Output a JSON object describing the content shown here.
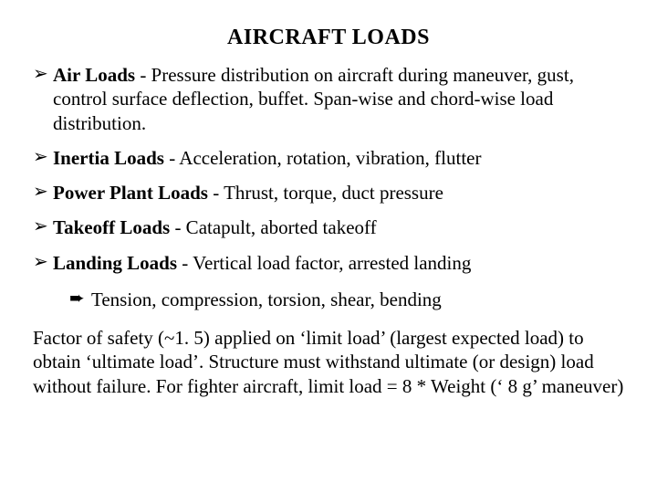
{
  "title": "AIRCRAFT LOADS",
  "bullet_marker": "➢",
  "arrow_marker": "➨",
  "items": [
    {
      "heading": "Air Loads",
      "rest": " - Pressure distribution on aircraft during maneuver, gust, control surface deflection, buffet.  Span-wise and chord-wise load distribution."
    },
    {
      "heading": "Inertia Loads",
      "rest": " - Acceleration, rotation, vibration, flutter"
    },
    {
      "heading": "Power Plant Loads",
      "rest": " - Thrust, torque, duct pressure"
    },
    {
      "heading": "Takeoff Loads",
      "rest": " - Catapult, aborted takeoff"
    },
    {
      "heading": "Landing Loads",
      "rest": " - Vertical load factor, arrested landing"
    }
  ],
  "sub": "Tension, compression, torsion, shear, bending",
  "footer": "Factor of safety (~1. 5) applied on ‘limit load’  (largest expected load) to obtain ‘ultimate load’.  Structure must withstand ultimate (or design) load without failure.  For fighter aircraft, limit load  = 8 * Weight (‘ 8 g’ maneuver)"
}
